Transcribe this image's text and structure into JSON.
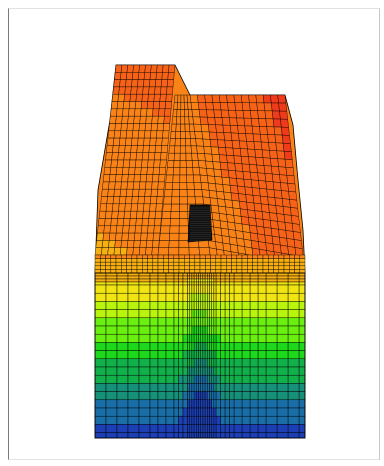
{
  "figure": {
    "kind": "3D finite-element mesh with color-contoured scalar field",
    "background": "#ffffff",
    "frame_color": "#7a7a7a"
  },
  "colormap": [
    "#1c3fb5",
    "#1a6ea8",
    "#17907a",
    "#12b04a",
    "#1ed81b",
    "#69ef10",
    "#b8f40c",
    "#f0e512",
    "#f7b012",
    "#f98317",
    "#f66318",
    "#ef3a1b"
  ]
}
